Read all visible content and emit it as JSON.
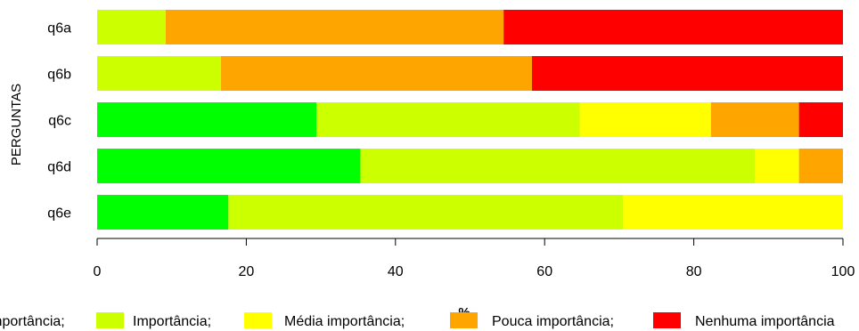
{
  "chart_data": {
    "type": "bar",
    "orientation": "horizontal",
    "stacked": true,
    "categories": [
      "q6a",
      "q6b",
      "q6c",
      "q6d",
      "q6e"
    ],
    "series": [
      {
        "name": "Muita importância",
        "color": "#00ff00",
        "values": [
          0,
          0,
          29.4,
          35.3,
          17.6
        ]
      },
      {
        "name": "Importância",
        "color": "#ccff00",
        "values": [
          9.2,
          16.6,
          35.3,
          52.9,
          52.9
        ]
      },
      {
        "name": "Média importância",
        "color": "#ffff00",
        "values": [
          0,
          0,
          17.6,
          5.9,
          29.5
        ]
      },
      {
        "name": "Pouca importância",
        "color": "#ffa500",
        "values": [
          45.3,
          41.7,
          11.8,
          5.9,
          0
        ]
      },
      {
        "name": "Nenhuma importância",
        "color": "#ff0000",
        "values": [
          45.5,
          41.7,
          5.9,
          0,
          0
        ]
      }
    ],
    "xlabel": "%",
    "ylabel": "PERGUNTAS",
    "xlim": [
      0,
      100
    ],
    "xticks": [
      "0",
      "20",
      "40",
      "60",
      "80",
      "100"
    ],
    "legend": {
      "placement": "bottom",
      "entries": [
        {
          "text": "Muita importância;",
          "color": "#00ff00"
        },
        {
          "text": "Importância;",
          "color": "#ccff00"
        },
        {
          "text": "Média importância;",
          "color": "#ffff00"
        },
        {
          "text": "Pouca importância;",
          "color": "#ffa500"
        },
        {
          "text": "Nenhuma importância",
          "color": "#ff0000"
        }
      ]
    },
    "grid": false
  }
}
